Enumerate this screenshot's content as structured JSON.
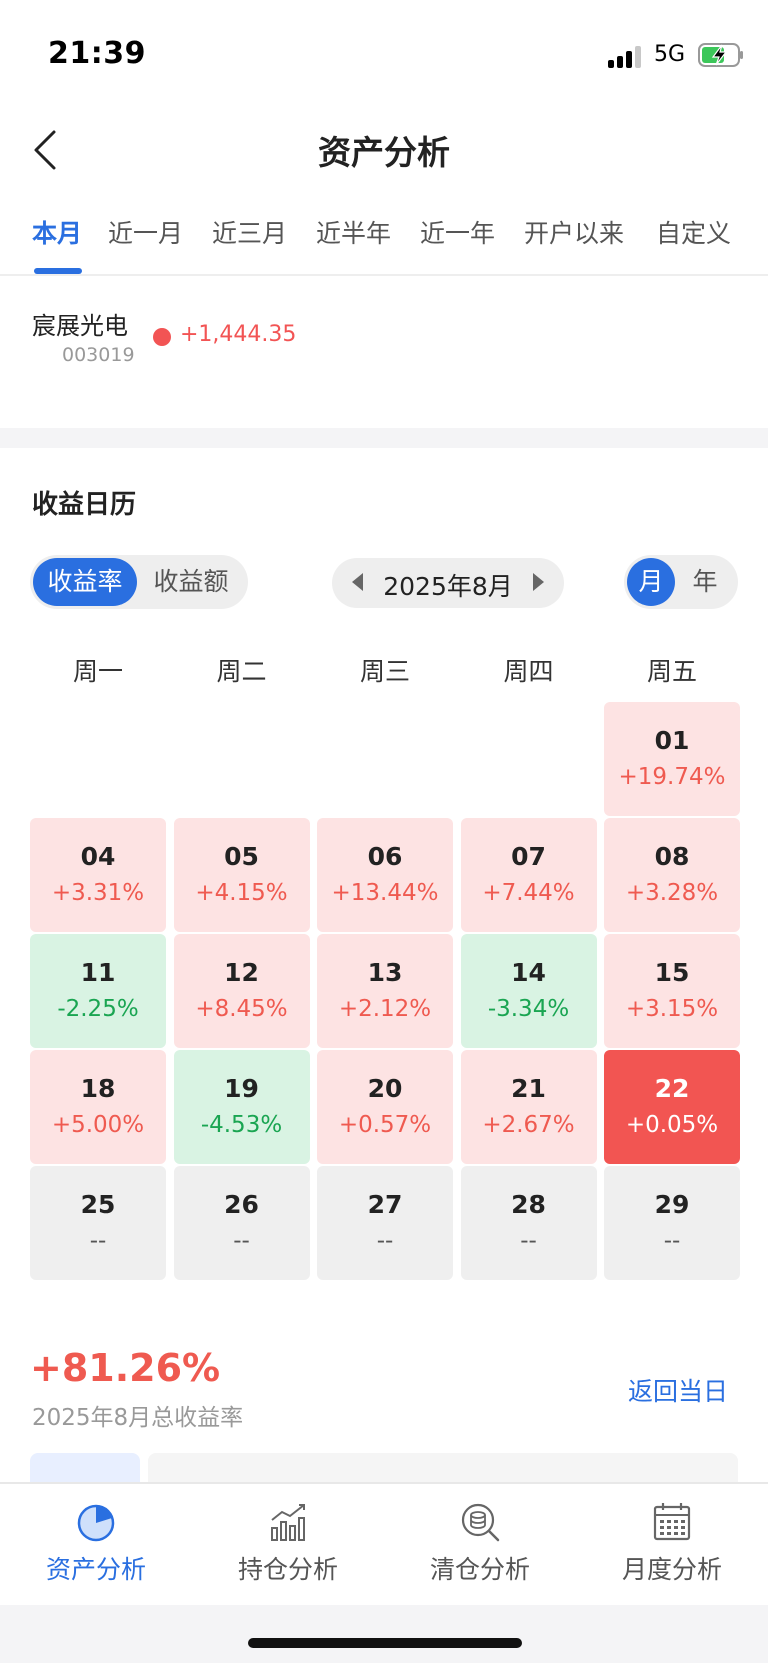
{
  "status_bar": {
    "time": "21:39",
    "network": "5G"
  },
  "header": {
    "title": "资产分析"
  },
  "period_tabs": [
    {
      "label": "本月",
      "active": true
    },
    {
      "label": "近一月",
      "active": false
    },
    {
      "label": "近三月",
      "active": false
    },
    {
      "label": "近半年",
      "active": false
    },
    {
      "label": "近一年",
      "active": false
    },
    {
      "label": "开户以来",
      "active": false
    },
    {
      "label": "自定义",
      "active": false
    }
  ],
  "stock": {
    "name": "宸展光电",
    "code": "003019",
    "value": "+1,444.35"
  },
  "calendar": {
    "title": "收益日历",
    "metric_options": [
      "收益率",
      "收益额"
    ],
    "month_label": "2025年8月",
    "range_options": [
      "月",
      "年"
    ],
    "weekdays": [
      "周一",
      "周二",
      "周三",
      "周四",
      "周五"
    ],
    "weeks": [
      [
        null,
        null,
        null,
        null,
        {
          "day": "01",
          "rate": "+19.74%",
          "status": "pos"
        }
      ],
      [
        {
          "day": "04",
          "rate": "+3.31%",
          "status": "pos"
        },
        {
          "day": "05",
          "rate": "+4.15%",
          "status": "pos"
        },
        {
          "day": "06",
          "rate": "+13.44%",
          "status": "pos"
        },
        {
          "day": "07",
          "rate": "+7.44%",
          "status": "pos"
        },
        {
          "day": "08",
          "rate": "+3.28%",
          "status": "pos"
        }
      ],
      [
        {
          "day": "11",
          "rate": "-2.25%",
          "status": "neg"
        },
        {
          "day": "12",
          "rate": "+8.45%",
          "status": "pos"
        },
        {
          "day": "13",
          "rate": "+2.12%",
          "status": "pos"
        },
        {
          "day": "14",
          "rate": "-3.34%",
          "status": "neg"
        },
        {
          "day": "15",
          "rate": "+3.15%",
          "status": "pos"
        }
      ],
      [
        {
          "day": "18",
          "rate": "+5.00%",
          "status": "pos"
        },
        {
          "day": "19",
          "rate": "-4.53%",
          "status": "neg"
        },
        {
          "day": "20",
          "rate": "+0.57%",
          "status": "pos"
        },
        {
          "day": "21",
          "rate": "+2.67%",
          "status": "pos"
        },
        {
          "day": "22",
          "rate": "+0.05%",
          "status": "today"
        }
      ],
      [
        {
          "day": "25",
          "rate": "--",
          "status": "none"
        },
        {
          "day": "26",
          "rate": "--",
          "status": "none"
        },
        {
          "day": "27",
          "rate": "--",
          "status": "none"
        },
        {
          "day": "28",
          "rate": "--",
          "status": "none"
        },
        {
          "day": "29",
          "rate": "--",
          "status": "none"
        }
      ]
    ]
  },
  "summary": {
    "total_rate": "+81.26%",
    "total_label": "2025年8月总收益率",
    "back_today": "返回当日"
  },
  "bottom_nav": [
    {
      "label": "资产分析",
      "icon": "pie-chart-icon",
      "active": true
    },
    {
      "label": "持仓分析",
      "icon": "bar-chart-icon",
      "active": false
    },
    {
      "label": "清仓分析",
      "icon": "coin-search-icon",
      "active": false
    },
    {
      "label": "月度分析",
      "icon": "calendar-icon",
      "active": false
    }
  ],
  "colors": {
    "accent": "#2a6fe0",
    "gain": "#ef5a50",
    "loss": "#1aa552",
    "today_bg": "#f25552"
  }
}
